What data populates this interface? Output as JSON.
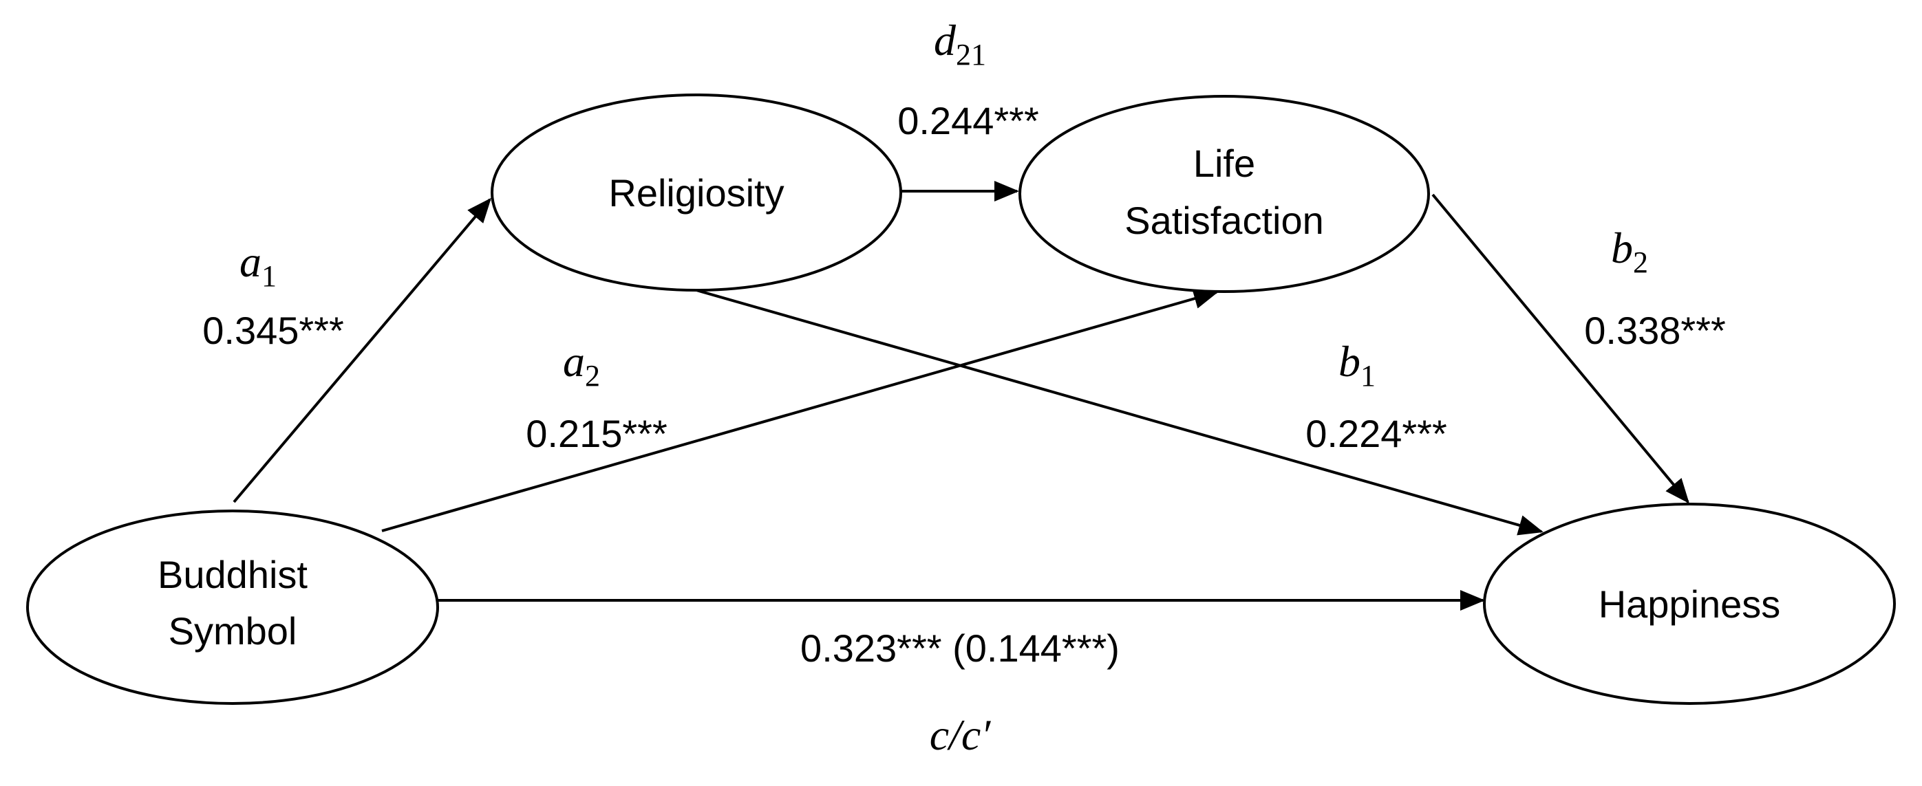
{
  "nodes": {
    "buddhist_symbol": {
      "line1": "Buddhist",
      "line2": "Symbol"
    },
    "religiosity": {
      "label": "Religiosity"
    },
    "life_satisfaction": {
      "line1": "Life",
      "line2": "Satisfaction"
    },
    "happiness": {
      "label": "Happiness"
    }
  },
  "paths": {
    "a1": {
      "symbol": "a",
      "subscript": "1",
      "coefficient": "0.345***"
    },
    "a2": {
      "symbol": "a",
      "subscript": "2",
      "coefficient": "0.215***"
    },
    "d21": {
      "symbol": "d",
      "subscript": "21",
      "coefficient": "0.244***"
    },
    "b1": {
      "symbol": "b",
      "subscript": "1",
      "coefficient": "0.224***"
    },
    "b2": {
      "symbol": "b",
      "subscript": "2",
      "coefficient": "0.338***"
    },
    "c": {
      "symbol": "c/c′",
      "coefficient": "0.323*** (0.144***)"
    }
  }
}
